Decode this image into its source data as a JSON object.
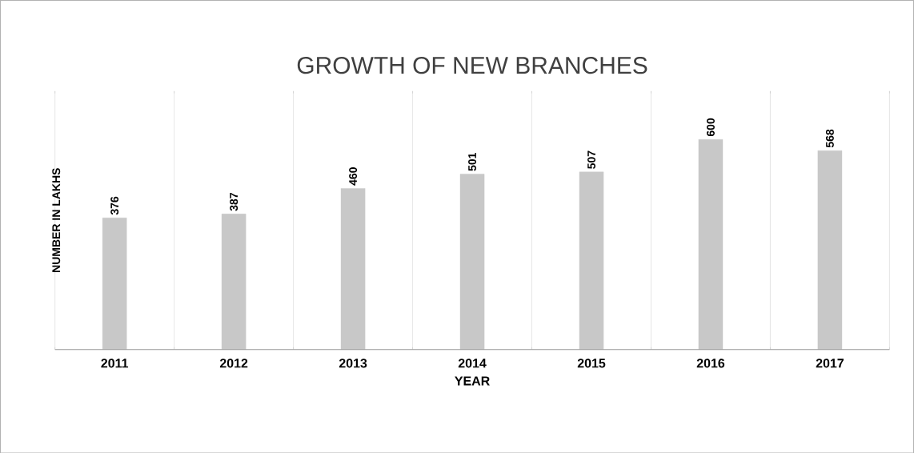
{
  "chart_data": {
    "type": "bar",
    "title": "GROWTH OF NEW BRANCHES",
    "xlabel": "YEAR",
    "ylabel": "NUMBER IN LAKHS",
    "categories": [
      "2011",
      "2012",
      "2013",
      "2014",
      "2015",
      "2016",
      "2017"
    ],
    "values": [
      376,
      387,
      460,
      501,
      507,
      600,
      568
    ],
    "color": "#c8c8c8",
    "data_labels": true,
    "grid": "x"
  }
}
